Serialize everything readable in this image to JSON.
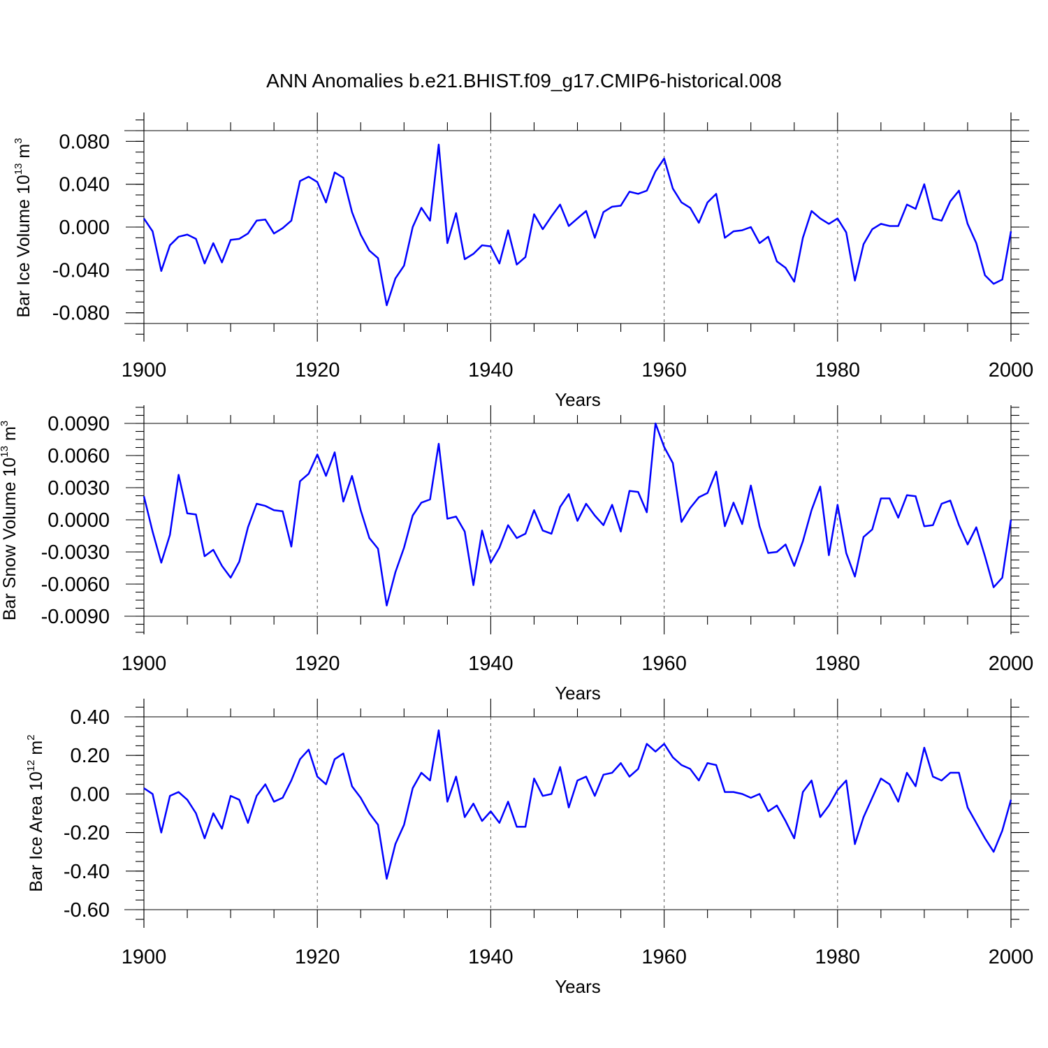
{
  "title": "ANN Anomalies b.e21.BHIST.f09_g17.CMIP6-historical.008",
  "chart_data": [
    {
      "type": "line",
      "ylabel": "Bar Ice Volume 10",
      "ylabel_exp": "13",
      "ylabel_unit": " m",
      "ylabel_unit_exp": "3",
      "xlabel": "Years",
      "xlim": [
        1900,
        2000
      ],
      "ylim": [
        -0.09,
        0.09
      ],
      "yticks": [
        -0.08,
        -0.04,
        0.0,
        0.04,
        0.08
      ],
      "ytick_labels": [
        "-0.080",
        "-0.040",
        "0.000",
        "0.040",
        "0.080"
      ],
      "xticks": [
        1900,
        1920,
        1940,
        1960,
        1980,
        2000
      ],
      "xtick_labels": [
        "1900",
        "1920",
        "1940",
        "1960",
        "1980",
        "2000"
      ],
      "grid_x": [
        1920,
        1940,
        1960,
        1980
      ],
      "series": [
        {
          "name": "Bar Ice Volume",
          "color": "#0000ff",
          "x_start": 1900,
          "values": [
            0.008,
            -0.004,
            -0.041,
            -0.017,
            -0.009,
            -0.007,
            -0.011,
            -0.034,
            -0.015,
            -0.033,
            -0.012,
            -0.011,
            -0.006,
            0.006,
            0.007,
            -0.006,
            -0.001,
            0.006,
            0.043,
            0.047,
            0.042,
            0.023,
            0.051,
            0.046,
            0.014,
            -0.007,
            -0.022,
            -0.029,
            -0.073,
            -0.048,
            -0.036,
            0.0,
            0.018,
            0.006,
            0.077,
            -0.015,
            0.013,
            -0.03,
            -0.025,
            -0.017,
            -0.018,
            -0.034,
            -0.003,
            -0.035,
            -0.028,
            0.012,
            -0.002,
            0.01,
            0.021,
            0.001,
            0.008,
            0.015,
            -0.01,
            0.014,
            0.019,
            0.02,
            0.033,
            0.031,
            0.034,
            0.052,
            0.064,
            0.036,
            0.023,
            0.018,
            0.004,
            0.023,
            0.031,
            -0.01,
            -0.004,
            -0.003,
            0.0,
            -0.015,
            -0.009,
            -0.032,
            -0.038,
            -0.051,
            -0.01,
            0.015,
            0.008,
            0.003,
            0.008,
            -0.005,
            -0.05,
            -0.016,
            -0.002,
            0.003,
            0.001,
            0.001,
            0.021,
            0.017,
            0.04,
            0.008,
            0.006,
            0.024,
            0.034,
            0.003,
            -0.015,
            -0.045,
            -0.053,
            -0.049,
            -0.004
          ]
        }
      ]
    },
    {
      "type": "line",
      "ylabel": "Bar Snow Volume 10",
      "ylabel_exp": "13",
      "ylabel_unit": " m",
      "ylabel_unit_exp": "3",
      "xlabel": "Years",
      "xlim": [
        1900,
        2000
      ],
      "ylim": [
        -0.009,
        0.009
      ],
      "yticks": [
        -0.009,
        -0.006,
        -0.003,
        0.0,
        0.003,
        0.006,
        0.009
      ],
      "ytick_labels": [
        "-0.0090",
        "-0.0060",
        "-0.0030",
        "0.0000",
        "0.0030",
        "0.0060",
        "0.0090"
      ],
      "xticks": [
        1900,
        1920,
        1940,
        1960,
        1980,
        2000
      ],
      "xtick_labels": [
        "1900",
        "1920",
        "1940",
        "1960",
        "1980",
        "2000"
      ],
      "grid_x": [
        1920,
        1940,
        1960,
        1980
      ],
      "series": [
        {
          "name": "Bar Snow Volume",
          "color": "#0000ff",
          "x_start": 1900,
          "values": [
            0.0022,
            -0.0011,
            -0.004,
            -0.0014,
            0.0042,
            0.0006,
            0.0005,
            -0.0034,
            -0.0028,
            -0.0043,
            -0.0054,
            -0.0039,
            -0.0007,
            0.0015,
            0.0013,
            0.0009,
            0.0008,
            -0.0025,
            0.0036,
            0.0043,
            0.0061,
            0.0041,
            0.0063,
            0.0017,
            0.0041,
            0.0009,
            -0.0017,
            -0.0027,
            -0.008,
            -0.0049,
            -0.0026,
            0.0004,
            0.0016,
            0.0019,
            0.0071,
            0.0001,
            0.0003,
            -0.0011,
            -0.0061,
            -0.001,
            -0.004,
            -0.0026,
            -0.0005,
            -0.0017,
            -0.0013,
            0.0009,
            -0.001,
            -0.0013,
            0.0012,
            0.0024,
            -0.0001,
            0.0015,
            0.0004,
            -0.0005,
            0.0014,
            -0.0011,
            0.0027,
            0.0026,
            0.0007,
            0.009,
            0.0068,
            0.0053,
            -0.0002,
            0.0011,
            0.0021,
            0.0025,
            0.0045,
            -0.0006,
            0.0016,
            -0.0004,
            0.0032,
            -0.0006,
            -0.0031,
            -0.003,
            -0.0023,
            -0.0043,
            -0.002,
            0.0009,
            0.0031,
            -0.0033,
            0.0014,
            -0.0031,
            -0.0053,
            -0.0016,
            -0.0009,
            0.002,
            0.002,
            0.0002,
            0.0023,
            0.0022,
            -0.0006,
            -0.0005,
            0.0015,
            0.0018,
            -0.0005,
            -0.0023,
            -0.0007,
            -0.0034,
            -0.0063,
            -0.0054,
            0.0
          ]
        }
      ]
    },
    {
      "type": "line",
      "ylabel": "Bar Ice Area 10",
      "ylabel_exp": "12",
      "ylabel_unit": " m",
      "ylabel_unit_exp": "2",
      "xlabel": "Years",
      "xlim": [
        1900,
        2000
      ],
      "ylim": [
        -0.6,
        0.4
      ],
      "yticks": [
        -0.6,
        -0.4,
        -0.2,
        0.0,
        0.2,
        0.4
      ],
      "ytick_labels": [
        "-0.60",
        "-0.40",
        "-0.20",
        "0.00",
        "0.20",
        "0.40"
      ],
      "xticks": [
        1900,
        1920,
        1940,
        1960,
        1980,
        2000
      ],
      "xtick_labels": [
        "1900",
        "1920",
        "1940",
        "1960",
        "1980",
        "2000"
      ],
      "grid_x": [
        1920,
        1940,
        1960,
        1980
      ],
      "series": [
        {
          "name": "Bar Ice Area",
          "color": "#0000ff",
          "x_start": 1900,
          "values": [
            0.03,
            0.0,
            -0.2,
            -0.01,
            0.01,
            -0.03,
            -0.1,
            -0.23,
            -0.1,
            -0.18,
            -0.01,
            -0.03,
            -0.15,
            -0.01,
            0.05,
            -0.04,
            -0.02,
            0.07,
            0.18,
            0.23,
            0.09,
            0.05,
            0.18,
            0.21,
            0.04,
            -0.02,
            -0.1,
            -0.16,
            -0.44,
            -0.26,
            -0.16,
            0.03,
            0.11,
            0.07,
            0.33,
            -0.04,
            0.09,
            -0.12,
            -0.05,
            -0.14,
            -0.09,
            -0.15,
            -0.04,
            -0.17,
            -0.17,
            0.08,
            -0.01,
            0.0,
            0.14,
            -0.07,
            0.07,
            0.09,
            -0.01,
            0.1,
            0.11,
            0.16,
            0.09,
            0.13,
            0.26,
            0.22,
            0.26,
            0.19,
            0.15,
            0.13,
            0.07,
            0.16,
            0.15,
            0.01,
            0.01,
            0.0,
            -0.02,
            0.0,
            -0.09,
            -0.06,
            -0.14,
            -0.23,
            0.01,
            0.07,
            -0.12,
            -0.06,
            0.02,
            0.07,
            -0.26,
            -0.12,
            -0.02,
            0.08,
            0.05,
            -0.04,
            0.11,
            0.04,
            0.24,
            0.09,
            0.07,
            0.11,
            0.11,
            -0.07,
            -0.15,
            -0.23,
            -0.3,
            -0.19,
            -0.03
          ]
        }
      ]
    }
  ]
}
